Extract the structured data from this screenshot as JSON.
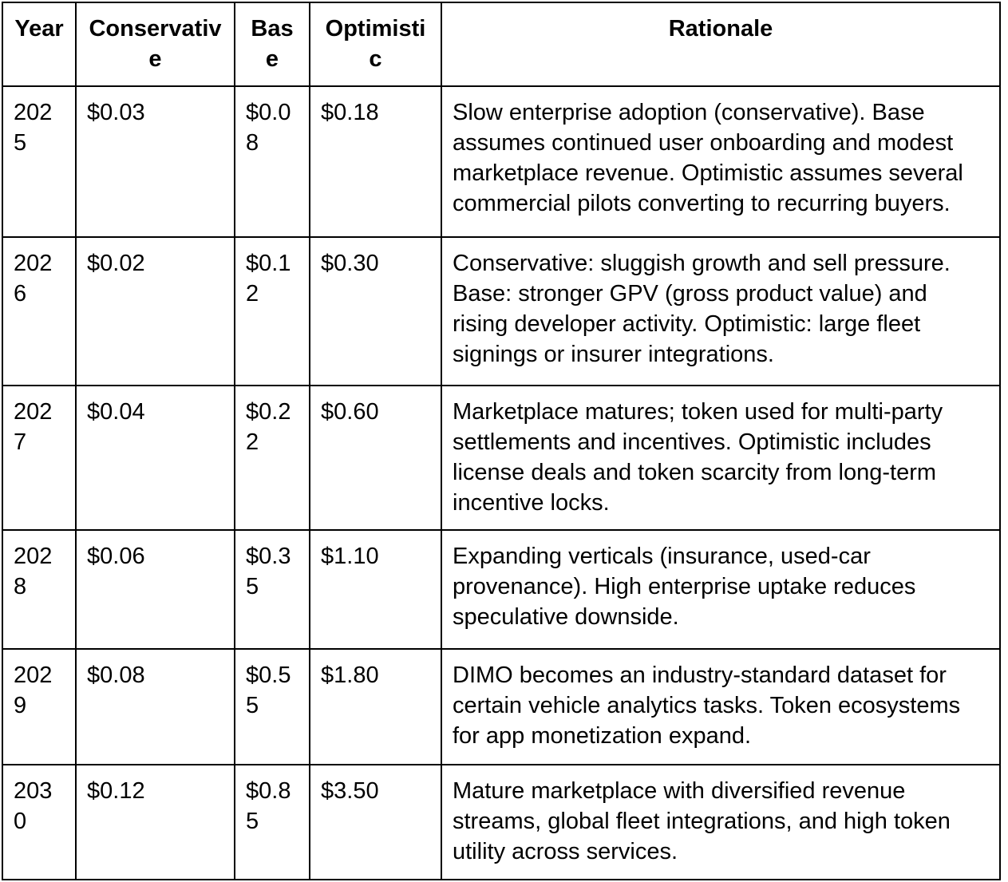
{
  "table": {
    "columns": [
      {
        "label": "Year"
      },
      {
        "label": "Conservative"
      },
      {
        "label": "Base"
      },
      {
        "label": "Optimistic"
      },
      {
        "label": "Rationale"
      }
    ],
    "rows": [
      {
        "year": "2025",
        "conservative": "$0.03",
        "base": "$0.08",
        "optimistic": "$0.18",
        "rationale": "Slow enterprise adoption (conservative). Base assumes continued user onboarding and modest marketplace revenue. Optimistic assumes several commercial pilots converting to recurring buyers."
      },
      {
        "year": "2026",
        "conservative": "$0.02",
        "base": "$0.12",
        "optimistic": "$0.30",
        "rationale": "Conservative: sluggish growth and sell pressure. Base: stronger GPV (gross product value) and rising developer activity. Optimistic: large fleet signings or insurer integrations."
      },
      {
        "year": "2027",
        "conservative": "$0.04",
        "base": "$0.22",
        "optimistic": "$0.60",
        "rationale": "Marketplace matures; token used for multi-party settlements and incentives. Optimistic includes license deals and token scarcity from long-term incentive locks."
      },
      {
        "year": "2028",
        "conservative": "$0.06",
        "base": "$0.35",
        "optimistic": "$1.10",
        "rationale": "Expanding verticals (insurance, used-car provenance). High enterprise uptake reduces speculative downside."
      },
      {
        "year": "2029",
        "conservative": "$0.08",
        "base": "$0.55",
        "optimistic": "$1.80",
        "rationale": "DIMO becomes an industry-standard dataset for certain vehicle analytics tasks. Token ecosystems for app monetization expand."
      },
      {
        "year": "2030",
        "conservative": "$0.12",
        "base": "$0.85",
        "optimistic": "$3.50",
        "rationale": "Mature marketplace with diversified revenue streams, global fleet integrations, and high token utility across services."
      }
    ]
  },
  "colors": {
    "border": "#000000",
    "text": "#000000",
    "background": "#ffffff"
  }
}
